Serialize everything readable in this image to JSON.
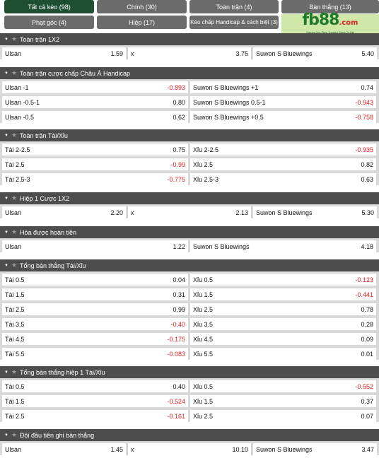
{
  "tabs": [
    {
      "label": "Tất cả kèo (98)",
      "active": true
    },
    {
      "label": "Chính (30)",
      "active": false
    },
    {
      "label": "Toàn trận (4)",
      "active": false
    },
    {
      "label": "Bàn thắng (13)",
      "active": false
    },
    {
      "label": "Phạt góc (4)",
      "active": false
    },
    {
      "label": "Hiệp (17)",
      "active": false
    },
    {
      "label": "Kèo chấp Handicap & cách biệt (3)",
      "active": false
    }
  ],
  "logo": {
    "brand_main": "fb88",
    "brand_suffix": ".com",
    "tagline": "Games You Play. Trusted Place To Bet"
  },
  "sections": [
    {
      "title": "Toàn trận 1X2",
      "cols": 3,
      "rows": [
        [
          {
            "label": "Ulsan",
            "odd": "1.59"
          },
          {
            "label": "x",
            "odd": "3.75"
          },
          {
            "label": "Suwon S Bluewings",
            "odd": "5.40"
          }
        ]
      ]
    },
    {
      "title": "Toàn trận cược chấp Châu Á Handicap",
      "cols": 2,
      "rows": [
        [
          {
            "label": "Ulsan -1",
            "odd": "-0.893"
          },
          {
            "label": "Suwon S Bluewings +1",
            "odd": "0.74"
          }
        ],
        [
          {
            "label": "Ulsan -0.5-1",
            "odd": "0.80"
          },
          {
            "label": "Suwon S Bluewings 0.5-1",
            "odd": "-0.943"
          }
        ],
        [
          {
            "label": "Ulsan -0.5",
            "odd": "0.62"
          },
          {
            "label": "Suwon S Bluewings +0.5",
            "odd": "-0.758"
          }
        ]
      ]
    },
    {
      "title": "Toàn trận Tài/Xỉu",
      "cols": 2,
      "rows": [
        [
          {
            "label": "Tài 2-2.5",
            "odd": "0.75"
          },
          {
            "label": "Xỉu 2-2.5",
            "odd": "-0.935"
          }
        ],
        [
          {
            "label": "Tài 2.5",
            "odd": "-0.99"
          },
          {
            "label": "Xỉu 2.5",
            "odd": "0.82"
          }
        ],
        [
          {
            "label": "Tài 2.5-3",
            "odd": "-0.775"
          },
          {
            "label": "Xỉu 2.5-3",
            "odd": "0.63"
          }
        ]
      ]
    },
    {
      "title": "Hiệp 1 Cược 1X2",
      "cols": 3,
      "rows": [
        [
          {
            "label": "Ulsan",
            "odd": "2.20"
          },
          {
            "label": "x",
            "odd": "2.13"
          },
          {
            "label": "Suwon S Bluewings",
            "odd": "5.30"
          }
        ]
      ]
    },
    {
      "title": "Hòa được hoàn tiền",
      "cols": 2,
      "rows": [
        [
          {
            "label": "Ulsan",
            "odd": "1.22"
          },
          {
            "label": "Suwon S Bluewings",
            "odd": "4.18"
          }
        ]
      ]
    },
    {
      "title": "Tổng bàn thắng Tài/Xỉu",
      "cols": 2,
      "rows": [
        [
          {
            "label": "Tài 0.5",
            "odd": "0.04"
          },
          {
            "label": "Xỉu 0.5",
            "odd": "-0.123"
          }
        ],
        [
          {
            "label": "Tài 1.5",
            "odd": "0.31"
          },
          {
            "label": "Xỉu 1.5",
            "odd": "-0.441"
          }
        ],
        [
          {
            "label": "Tài 2.5",
            "odd": "0.99"
          },
          {
            "label": "Xỉu 2.5",
            "odd": "0.78"
          }
        ],
        [
          {
            "label": "Tài 3.5",
            "odd": "-0.40"
          },
          {
            "label": "Xỉu 3.5",
            "odd": "0.28"
          }
        ],
        [
          {
            "label": "Tài 4.5",
            "odd": "-0.175"
          },
          {
            "label": "Xỉu 4.5",
            "odd": "0.09"
          }
        ],
        [
          {
            "label": "Tài 5.5",
            "odd": "-0.083"
          },
          {
            "label": "Xỉu 5.5",
            "odd": "0.01"
          }
        ]
      ]
    },
    {
      "title": "Tổng bàn thắng hiệp 1 Tài/Xỉu",
      "cols": 2,
      "rows": [
        [
          {
            "label": "Tài 0.5",
            "odd": "0.40"
          },
          {
            "label": "Xỉu 0.5",
            "odd": "-0.552"
          }
        ],
        [
          {
            "label": "Tài 1.5",
            "odd": "-0.524"
          },
          {
            "label": "Xỉu 1.5",
            "odd": "0.37"
          }
        ],
        [
          {
            "label": "Tài 2.5",
            "odd": "-0.161"
          },
          {
            "label": "Xỉu 2.5",
            "odd": "0.07"
          }
        ]
      ]
    },
    {
      "title": "Đội đầu tiên ghi bàn thắng",
      "cols": 3,
      "rows": [
        [
          {
            "label": "Ulsan",
            "odd": "1.45"
          },
          {
            "label": "x",
            "odd": "10.10"
          },
          {
            "label": "Suwon S Bluewings",
            "odd": "3.47"
          }
        ]
      ]
    }
  ]
}
